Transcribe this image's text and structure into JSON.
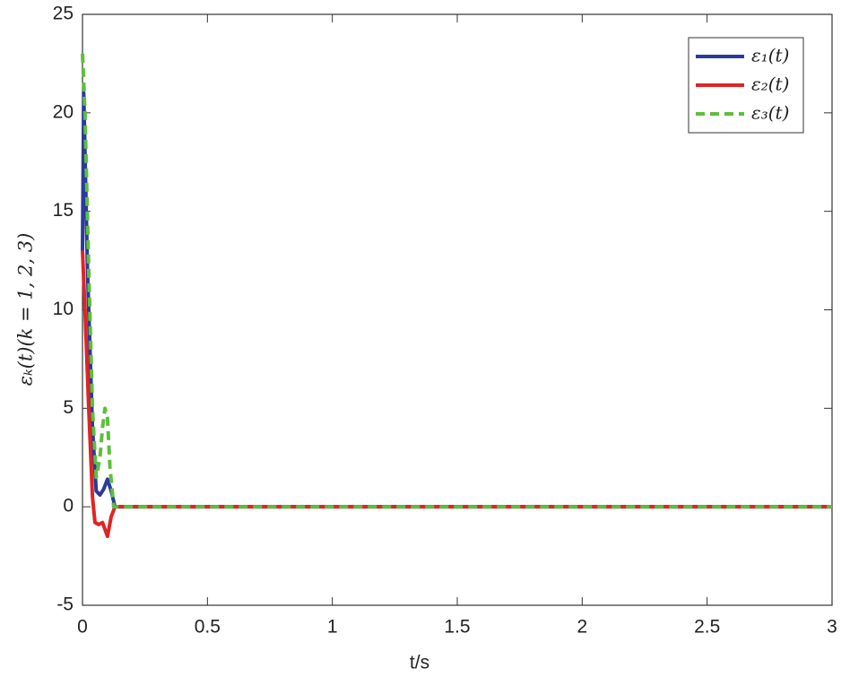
{
  "chart_data": {
    "type": "line",
    "xlabel": "t/s",
    "ylabel": "εₖ(t)(k = 1, 2, 3)",
    "xlim": [
      0,
      3
    ],
    "xticks": [
      0,
      0.5,
      1,
      1.5,
      2,
      2.5,
      3
    ],
    "ylim": [
      -5,
      25
    ],
    "yticks": [
      -5,
      0,
      5,
      10,
      15,
      20,
      25
    ],
    "legend": "top-right",
    "series": [
      {
        "name": "ε₁(t)",
        "color": "#2a3a9c",
        "dashed": false,
        "x": [
          0,
          0.005,
          0.02,
          0.04,
          0.055,
          0.07,
          0.085,
          0.1,
          0.115,
          0.13,
          0.2,
          3
        ],
        "values": [
          13,
          21,
          12,
          4,
          0.8,
          0.6,
          0.9,
          1.4,
          0.8,
          0,
          0,
          0
        ]
      },
      {
        "name": "ε₂(t)",
        "color": "#e02424",
        "dashed": false,
        "x": [
          0,
          0.01,
          0.025,
          0.04,
          0.05,
          0.065,
          0.08,
          0.1,
          0.115,
          0.13,
          0.2,
          3
        ],
        "values": [
          13,
          10,
          5,
          0.5,
          -0.8,
          -0.9,
          -0.8,
          -1.5,
          -0.5,
          0,
          0,
          0
        ]
      },
      {
        "name": "ε₃(t)",
        "color": "#5cbf3c",
        "dashed": true,
        "x": [
          0,
          0.01,
          0.025,
          0.04,
          0.055,
          0.07,
          0.08,
          0.09,
          0.1,
          0.11,
          0.125,
          0.2,
          3
        ],
        "values": [
          23,
          20,
          12,
          5,
          1.5,
          2.5,
          4,
          5,
          4.5,
          2,
          0,
          0,
          0
        ]
      }
    ]
  }
}
